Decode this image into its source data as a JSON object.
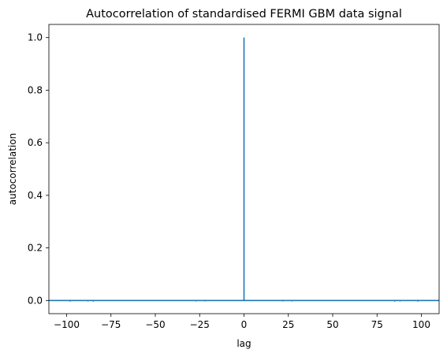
{
  "chart_data": {
    "type": "stem",
    "title": "Autocorrelation of standardised FERMI GBM data signal",
    "xlabel": "lag",
    "ylabel": "autocorrelation",
    "xlim": [
      -110,
      110
    ],
    "ylim": [
      -0.05,
      1.05
    ],
    "x_ticks": [
      -100,
      -75,
      -50,
      -25,
      0,
      25,
      50,
      75,
      100
    ],
    "x_tick_labels": [
      "−100",
      "−75",
      "−50",
      "−25",
      "0",
      "25",
      "50",
      "75",
      "100"
    ],
    "y_ticks": [
      0.0,
      0.2,
      0.4,
      0.6,
      0.8,
      1.0
    ],
    "y_tick_labels": [
      "0.0",
      "0.2",
      "0.4",
      "0.6",
      "0.8",
      "1.0"
    ],
    "baseline": 0,
    "grid": false,
    "series": [
      {
        "name": "autocorrelation",
        "color": "#1f77b4",
        "points": [
          {
            "lag": -98,
            "value": -0.005
          },
          {
            "lag": -88,
            "value": -0.004
          },
          {
            "lag": -85,
            "value": -0.005
          },
          {
            "lag": -27,
            "value": -0.004
          },
          {
            "lag": -22,
            "value": -0.004
          },
          {
            "lag": 0,
            "value": 1.0
          },
          {
            "lag": 22,
            "value": -0.004
          },
          {
            "lag": 27,
            "value": -0.004
          },
          {
            "lag": 85,
            "value": -0.005
          },
          {
            "lag": 88,
            "value": -0.004
          },
          {
            "lag": 98,
            "value": -0.005
          }
        ]
      }
    ]
  }
}
